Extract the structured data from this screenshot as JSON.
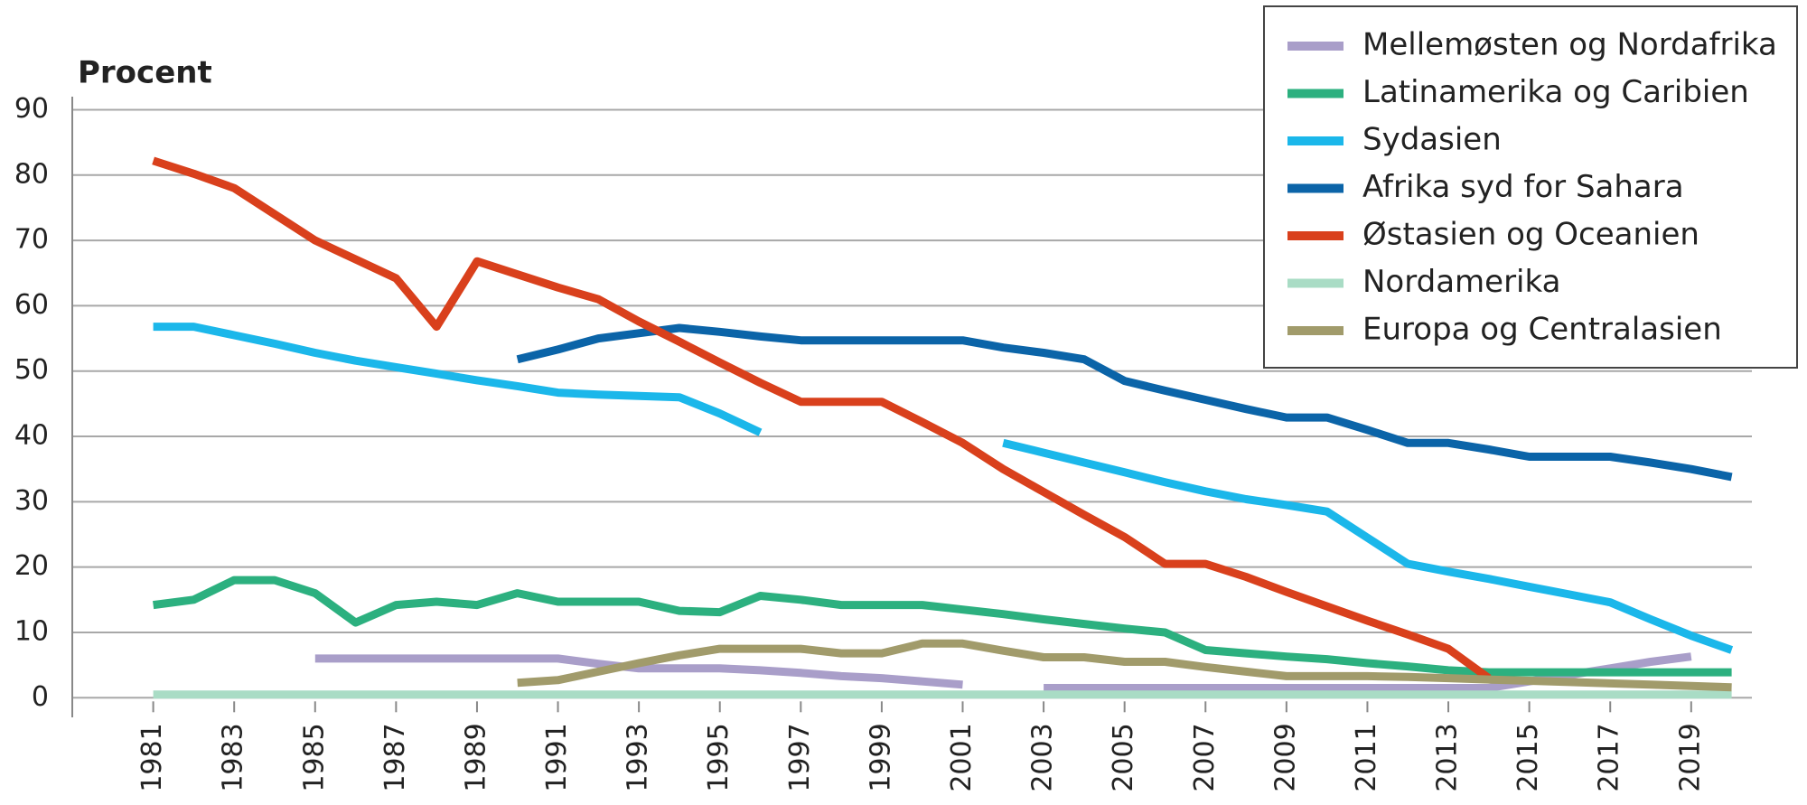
{
  "chart_data": {
    "type": "line",
    "y_label": "Procent",
    "x": [
      1981,
      1982,
      1983,
      1984,
      1985,
      1986,
      1987,
      1988,
      1989,
      1990,
      1991,
      1992,
      1993,
      1994,
      1995,
      1996,
      1997,
      1998,
      1999,
      2000,
      2001,
      2002,
      2003,
      2004,
      2005,
      2006,
      2007,
      2008,
      2009,
      2010,
      2011,
      2012,
      2013,
      2014,
      2015,
      2016,
      2017,
      2018,
      2019,
      2020
    ],
    "xlim": [
      1979,
      2020.5
    ],
    "xticks": [
      1981,
      1983,
      1985,
      1987,
      1989,
      1991,
      1993,
      1995,
      1997,
      1999,
      2001,
      2003,
      2005,
      2007,
      2009,
      2011,
      2013,
      2015,
      2017,
      2019
    ],
    "ylim": [
      -3,
      92
    ],
    "yticks": [
      0,
      10,
      20,
      30,
      40,
      50,
      60,
      70,
      80,
      90
    ],
    "grid": true,
    "legend": "top-right",
    "series": [
      {
        "name": "Mellemøsten og Nordafrika",
        "color": "#a99ec9",
        "values": [
          null,
          null,
          null,
          null,
          6,
          6,
          6,
          6,
          6,
          6,
          6,
          5.2,
          4.5,
          4.5,
          4.5,
          4.2,
          3.8,
          3.3,
          3,
          2.5,
          2,
          null,
          1.5,
          1.5,
          1.5,
          1.5,
          1.5,
          1.5,
          1.5,
          1.5,
          1.5,
          1.5,
          1.5,
          1.5,
          2.5,
          3.5,
          4.5,
          5.5,
          6.3,
          null
        ]
      },
      {
        "name": "Latinamerika og Caribien",
        "color": "#2cb07f",
        "values": [
          14.2,
          15,
          18,
          18,
          16,
          11.5,
          14.2,
          14.7,
          14.2,
          16,
          14.7,
          14.7,
          14.7,
          13.3,
          13.1,
          15.6,
          15,
          14.2,
          14.2,
          14.2,
          13.5,
          12.8,
          12,
          11.3,
          10.6,
          10,
          7.3,
          6.8,
          6.3,
          5.9,
          5.3,
          4.8,
          4.2,
          3.9,
          3.9,
          3.9,
          3.9,
          3.9,
          3.9,
          3.9
        ]
      },
      {
        "name": "Sydasien",
        "color": "#1bb7ea",
        "values": [
          56.8,
          56.8,
          55.5,
          54.2,
          52.8,
          51.6,
          50.6,
          49.6,
          48.6,
          47.7,
          46.7,
          46.4,
          46.2,
          46,
          43.5,
          40.6,
          null,
          null,
          null,
          null,
          null,
          39,
          37.5,
          36,
          34.5,
          33,
          31.6,
          30.4,
          29.5,
          28.5,
          24.5,
          20.5,
          19.3,
          18.2,
          17,
          15.8,
          14.6,
          12,
          9.5,
          7.3
        ]
      },
      {
        "name": "Afrika syd for Sahara",
        "color": "#0b64a8",
        "values": [
          null,
          null,
          null,
          null,
          null,
          null,
          null,
          null,
          null,
          51.8,
          53.3,
          55,
          55.8,
          56.6,
          56,
          55.3,
          54.7,
          54.7,
          54.7,
          54.7,
          54.7,
          53.6,
          52.8,
          51.8,
          48.5,
          47,
          45.6,
          44.2,
          42.9,
          42.9,
          41,
          39,
          39,
          38,
          36.9,
          36.9,
          36.9,
          36,
          35,
          33.8
        ]
      },
      {
        "name": "Østasien og Oceanien",
        "color": "#d9401c",
        "values": [
          82.2,
          80.2,
          78,
          74,
          70,
          67.1,
          64.2,
          56.8,
          66.8,
          64.8,
          62.8,
          61,
          57.6,
          54.5,
          51.3,
          48.2,
          45.3,
          45.3,
          45.3,
          42.2,
          39,
          35,
          31.5,
          28,
          24.6,
          20.5,
          20.5,
          18.5,
          16.2,
          14,
          11.8,
          9.7,
          7.5,
          3,
          null,
          null,
          null,
          null,
          null,
          null
        ]
      },
      {
        "name": "Nordamerika",
        "color": "#a9dcc5",
        "values": [
          0.5,
          0.5,
          0.5,
          0.5,
          0.5,
          0.5,
          0.5,
          0.5,
          0.5,
          0.5,
          0.5,
          0.5,
          0.5,
          0.5,
          0.5,
          0.5,
          0.5,
          0.5,
          0.5,
          0.5,
          0.5,
          0.5,
          0.5,
          0.5,
          0.5,
          0.5,
          0.5,
          0.5,
          0.5,
          0.5,
          0.5,
          0.5,
          0.5,
          0.5,
          0.5,
          0.5,
          0.5,
          0.5,
          0.5,
          0.5
        ]
      },
      {
        "name": "Europa og Centralasien",
        "color": "#a19b6b",
        "values": [
          null,
          null,
          null,
          null,
          null,
          null,
          null,
          null,
          null,
          2.3,
          2.7,
          4,
          5.3,
          6.5,
          7.5,
          7.5,
          7.5,
          6.8,
          6.8,
          8.3,
          8.3,
          7.2,
          6.2,
          6.2,
          5.5,
          5.5,
          4.7,
          4,
          3.3,
          3.3,
          3.3,
          3.2,
          3,
          2.8,
          2.6,
          2.4,
          2.2,
          2,
          1.8,
          1.6
        ]
      }
    ]
  }
}
